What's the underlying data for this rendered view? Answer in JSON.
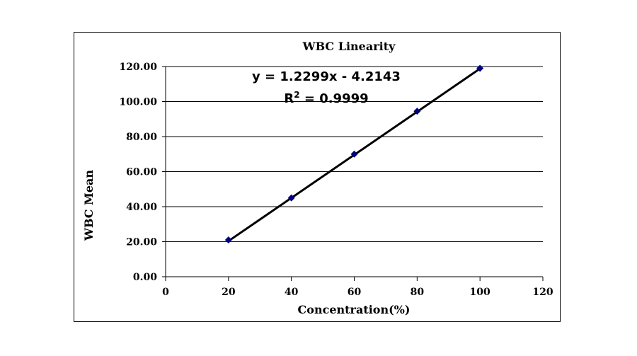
{
  "chart_data": {
    "type": "scatter",
    "title": "WBC Linearity",
    "xlabel": "Concentration(%)",
    "ylabel": "WBC Mean",
    "xlim": [
      0,
      120
    ],
    "ylim": [
      0,
      120
    ],
    "x_ticks": [
      "0",
      "20",
      "40",
      "60",
      "80",
      "100",
      "120"
    ],
    "y_ticks": [
      "0.00",
      "20.00",
      "40.00",
      "60.00",
      "80.00",
      "100.00",
      "120.00"
    ],
    "grid": "horizontal",
    "series": [
      {
        "x": [
          20,
          40,
          60,
          80,
          100
        ],
        "y": [
          21.0,
          45.0,
          70.0,
          94.5,
          119.0
        ],
        "marker": "diamond",
        "color": "#000080"
      }
    ],
    "trendline": {
      "slope": 1.2299,
      "intercept": -4.2143,
      "color": "#000000"
    },
    "annotations": {
      "equation_main": "y = 1.2299x - 4.2143",
      "r_squared_label": "R",
      "r_squared_exp": "2",
      "r_squared_value": " = 0.9999"
    }
  }
}
